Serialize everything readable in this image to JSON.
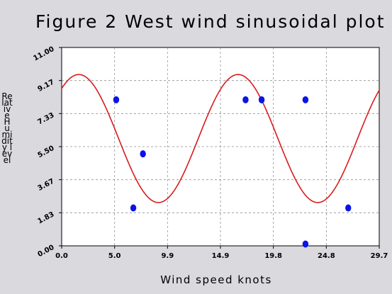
{
  "chart_data": {
    "type": "scatter",
    "title": "Figure 2 West wind sinusoidal plot",
    "xlabel": "Wind speed knots",
    "ylabel": "Relative Humidity level",
    "xlim": [
      0.0,
      29.7
    ],
    "ylim": [
      0.0,
      11.0
    ],
    "x_ticks": [
      "0.0",
      "5.0",
      "9.9",
      "14.9",
      "19.8",
      "24.8",
      "29.7"
    ],
    "y_ticks": [
      "0.00",
      "1.83",
      "3.67",
      "5.50",
      "7.33",
      "9.17",
      "11.00"
    ],
    "grid": true,
    "points": [
      {
        "x": 5.1,
        "y": 8.1
      },
      {
        "x": 6.7,
        "y": 2.1
      },
      {
        "x": 7.6,
        "y": 5.1
      },
      {
        "x": 17.2,
        "y": 8.1
      },
      {
        "x": 18.7,
        "y": 8.1
      },
      {
        "x": 22.8,
        "y": 8.1
      },
      {
        "x": 22.8,
        "y": 0.1
      },
      {
        "x": 26.8,
        "y": 2.1
      }
    ],
    "fit_curve": {
      "type": "sinusoid",
      "amplitude": 3.55,
      "offset": 5.95,
      "period": 14.9,
      "peak_x": 1.6
    },
    "colors": {
      "points": "#0a14e6",
      "curve": "#d81c1c",
      "grid": "#909090"
    }
  }
}
